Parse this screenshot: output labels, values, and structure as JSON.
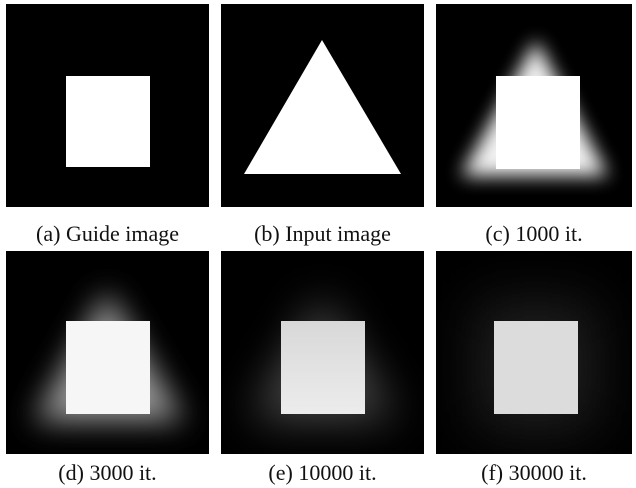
{
  "figure": {
    "panels": [
      {
        "caption": "(a) Guide image"
      },
      {
        "caption": "(b) Input image"
      },
      {
        "caption": "(c) 1000 it."
      },
      {
        "caption": "(d) 3000 it."
      },
      {
        "caption": "(e) 10000 it."
      },
      {
        "caption": "(f) 30000 it."
      }
    ]
  }
}
